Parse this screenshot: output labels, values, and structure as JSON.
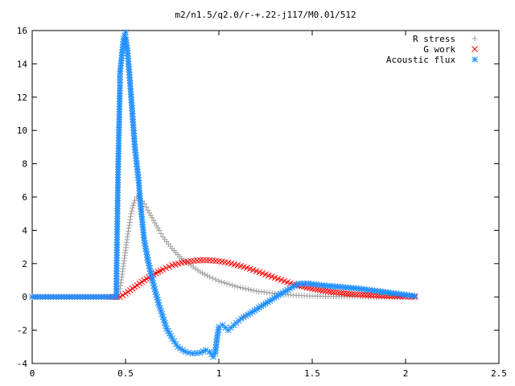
{
  "chart_data": {
    "type": "scatter",
    "title": "m2/n1.5/q2.0/r-+.22-j117/M0.01/512",
    "xlabel": "",
    "ylabel": "",
    "xlim": [
      0,
      2.5
    ],
    "ylim": [
      -4,
      16
    ],
    "x_ticks": [
      "0",
      "0.5",
      "1",
      "1.5",
      "2",
      "2.5"
    ],
    "y_ticks": [
      "-4",
      "-2",
      "0",
      "2",
      "4",
      "6",
      "8",
      "10",
      "12",
      "14",
      "16"
    ],
    "grid": false,
    "legend_position": "top-right",
    "series": [
      {
        "name": "R stress",
        "marker": "plus",
        "color": "#a0a0a0",
        "points": [
          [
            0,
            0
          ],
          [
            0.1,
            0
          ],
          [
            0.2,
            0
          ],
          [
            0.3,
            0
          ],
          [
            0.4,
            0
          ],
          [
            0.45,
            0.0
          ],
          [
            0.47,
            0.5
          ],
          [
            0.48,
            1.2
          ],
          [
            0.49,
            2.0
          ],
          [
            0.5,
            2.8
          ],
          [
            0.51,
            3.6
          ],
          [
            0.52,
            4.3
          ],
          [
            0.53,
            5.0
          ],
          [
            0.54,
            5.5
          ],
          [
            0.55,
            5.8
          ],
          [
            0.56,
            6.0
          ],
          [
            0.57,
            6.0
          ],
          [
            0.58,
            5.9
          ],
          [
            0.6,
            5.6
          ],
          [
            0.62,
            5.2
          ],
          [
            0.65,
            4.6
          ],
          [
            0.68,
            4.0
          ],
          [
            0.7,
            3.6
          ],
          [
            0.75,
            2.9
          ],
          [
            0.8,
            2.3
          ],
          [
            0.85,
            1.9
          ],
          [
            0.9,
            1.5
          ],
          [
            0.95,
            1.2
          ],
          [
            1.0,
            0.95
          ],
          [
            1.1,
            0.6
          ],
          [
            1.2,
            0.35
          ],
          [
            1.3,
            0.2
          ],
          [
            1.4,
            0.1
          ],
          [
            1.5,
            0.05
          ],
          [
            1.6,
            0.03
          ],
          [
            1.7,
            0.02
          ],
          [
            1.8,
            0.01
          ],
          [
            1.9,
            0.0
          ],
          [
            2.0,
            0.0
          ],
          [
            2.05,
            0.0
          ]
        ]
      },
      {
        "name": "G work",
        "marker": "cross",
        "color": "#ff0000",
        "points": [
          [
            0,
            0
          ],
          [
            0.1,
            0
          ],
          [
            0.2,
            0
          ],
          [
            0.3,
            0
          ],
          [
            0.4,
            0
          ],
          [
            0.47,
            0.0
          ],
          [
            0.5,
            0.2
          ],
          [
            0.55,
            0.6
          ],
          [
            0.6,
            1.0
          ],
          [
            0.65,
            1.35
          ],
          [
            0.7,
            1.65
          ],
          [
            0.75,
            1.9
          ],
          [
            0.8,
            2.05
          ],
          [
            0.85,
            2.15
          ],
          [
            0.9,
            2.2
          ],
          [
            0.95,
            2.2
          ],
          [
            1.0,
            2.15
          ],
          [
            1.05,
            2.05
          ],
          [
            1.1,
            1.9
          ],
          [
            1.15,
            1.75
          ],
          [
            1.2,
            1.55
          ],
          [
            1.25,
            1.35
          ],
          [
            1.3,
            1.15
          ],
          [
            1.35,
            0.95
          ],
          [
            1.4,
            0.75
          ],
          [
            1.5,
            0.5
          ],
          [
            1.6,
            0.3
          ],
          [
            1.7,
            0.18
          ],
          [
            1.8,
            0.1
          ],
          [
            1.9,
            0.05
          ],
          [
            2.0,
            0.02
          ],
          [
            2.05,
            0.0
          ]
        ]
      },
      {
        "name": "Acoustic flux",
        "marker": "star",
        "color": "#1f8fff",
        "points": [
          [
            0,
            0
          ],
          [
            0.1,
            0
          ],
          [
            0.2,
            0
          ],
          [
            0.3,
            0
          ],
          [
            0.4,
            0
          ],
          [
            0.45,
            0.0
          ],
          [
            0.46,
            7.5
          ],
          [
            0.47,
            12.7
          ],
          [
            0.47,
            13.4
          ],
          [
            0.48,
            14.5
          ],
          [
            0.49,
            15.5
          ],
          [
            0.5,
            15.9
          ],
          [
            0.5,
            15.6
          ],
          [
            0.51,
            14.8
          ],
          [
            0.52,
            13.5
          ],
          [
            0.53,
            12.0
          ],
          [
            0.54,
            10.5
          ],
          [
            0.55,
            9.0
          ],
          [
            0.56,
            8.0
          ],
          [
            0.57,
            7.0
          ],
          [
            0.58,
            5.6
          ],
          [
            0.59,
            4.5
          ],
          [
            0.6,
            3.4
          ],
          [
            0.62,
            2.2
          ],
          [
            0.64,
            1.2
          ],
          [
            0.66,
            0.3
          ],
          [
            0.68,
            -0.5
          ],
          [
            0.7,
            -1.2
          ],
          [
            0.72,
            -1.9
          ],
          [
            0.75,
            -2.5
          ],
          [
            0.78,
            -3.0
          ],
          [
            0.82,
            -3.3
          ],
          [
            0.86,
            -3.4
          ],
          [
            0.9,
            -3.35
          ],
          [
            0.93,
            -3.2
          ],
          [
            0.95,
            -3.3
          ],
          [
            0.97,
            -3.6
          ],
          [
            0.98,
            -3.4
          ],
          [
            0.99,
            -2.5
          ],
          [
            1.0,
            -1.8
          ],
          [
            1.02,
            -1.7
          ],
          [
            1.05,
            -2.0
          ],
          [
            1.08,
            -1.7
          ],
          [
            1.12,
            -1.3
          ],
          [
            1.18,
            -0.9
          ],
          [
            1.25,
            -0.4
          ],
          [
            1.32,
            0.1
          ],
          [
            1.38,
            0.5
          ],
          [
            1.43,
            0.8
          ],
          [
            1.48,
            0.8
          ],
          [
            1.55,
            0.7
          ],
          [
            1.65,
            0.6
          ],
          [
            1.75,
            0.5
          ],
          [
            1.85,
            0.35
          ],
          [
            1.95,
            0.2
          ],
          [
            2.05,
            0.05
          ]
        ]
      }
    ]
  }
}
